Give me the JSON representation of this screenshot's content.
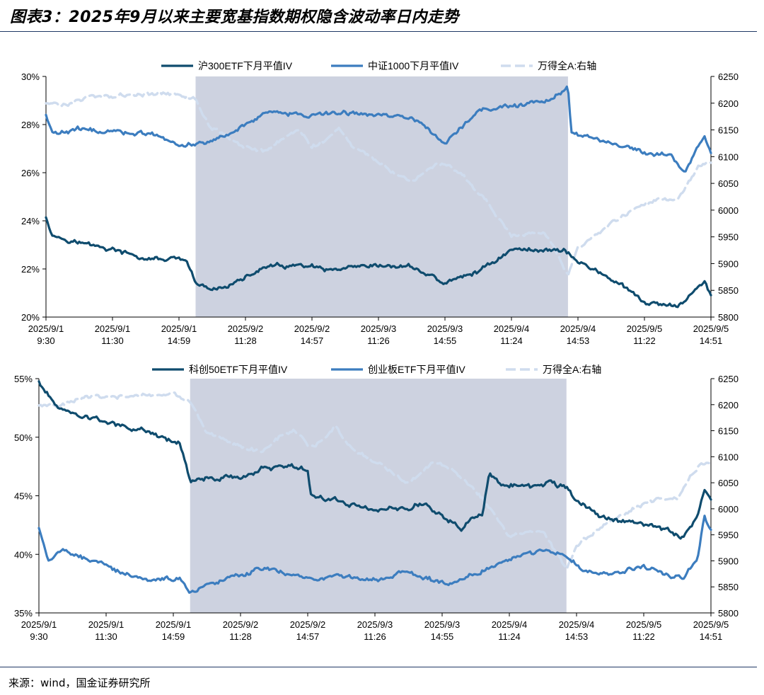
{
  "figure": {
    "title": "图表3：2025年9月以来主要宽基指数期权隐含波动率日内走势",
    "source": "来源：wind，国金证券研究所"
  },
  "colors": {
    "dark_series": "#0f4c6e",
    "mid_series": "#3c7dbf",
    "light_series": "#cfdcee",
    "shade": "#cdd2e0",
    "axis": "#000000"
  },
  "chart_data": [
    {
      "type": "line",
      "x_tick_labels": [
        [
          "2025/9/1",
          "9:30"
        ],
        [
          "2025/9/1",
          "11:30"
        ],
        [
          "2025/9/1",
          "14:59"
        ],
        [
          "2025/9/2",
          "11:28"
        ],
        [
          "2025/9/2",
          "14:57"
        ],
        [
          "2025/9/3",
          "11:26"
        ],
        [
          "2025/9/3",
          "14:55"
        ],
        [
          "2025/9/4",
          "11:24"
        ],
        [
          "2025/9/4",
          "14:53"
        ],
        [
          "2025/9/5",
          "11:22"
        ],
        [
          "2025/9/5",
          "14:51"
        ]
      ],
      "x_range": [
        0,
        10
      ],
      "y_left": {
        "min": 20,
        "max": 30,
        "ticks": [
          20,
          22,
          24,
          26,
          28,
          30
        ],
        "format": "percent"
      },
      "y_right": {
        "min": 5800,
        "max": 6250,
        "ticks": [
          5800,
          5850,
          5900,
          5950,
          6000,
          6050,
          6100,
          6150,
          6200,
          6250
        ]
      },
      "shaded_range": [
        2.25,
        7.85
      ],
      "legend": [
        "沪300ETF下月平值IV",
        "中证1000下月平值IV",
        "万得全A:右轴"
      ],
      "series": [
        {
          "name": "沪300ETF下月平值IV",
          "axis": "left",
          "style": "solid-dark",
          "noise": 0.12,
          "points": [
            [
              0,
              24.2
            ],
            [
              0.1,
              23.4
            ],
            [
              0.5,
              23.1
            ],
            [
              1.0,
              22.8
            ],
            [
              1.5,
              22.4
            ],
            [
              2.0,
              22.4
            ],
            [
              2.1,
              22.3
            ],
            [
              2.25,
              21.4
            ],
            [
              2.5,
              21.1
            ],
            [
              3.0,
              21.6
            ],
            [
              3.3,
              22.1
            ],
            [
              4.0,
              22.1
            ],
            [
              4.2,
              21.9
            ],
            [
              5.0,
              22.1
            ],
            [
              5.5,
              22.1
            ],
            [
              6.0,
              21.4
            ],
            [
              6.5,
              21.9
            ],
            [
              7.0,
              22.8
            ],
            [
              7.5,
              22.8
            ],
            [
              7.8,
              22.8
            ],
            [
              8.0,
              22.3
            ],
            [
              8.5,
              21.6
            ],
            [
              9.0,
              20.6
            ],
            [
              9.5,
              20.4
            ],
            [
              9.7,
              21.0
            ],
            [
              9.9,
              21.5
            ],
            [
              10,
              20.9
            ]
          ]
        },
        {
          "name": "中证1000下月平值IV",
          "axis": "left",
          "style": "solid-mid",
          "noise": 0.12,
          "points": [
            [
              0,
              28.4
            ],
            [
              0.1,
              27.6
            ],
            [
              0.5,
              27.8
            ],
            [
              1.0,
              27.7
            ],
            [
              1.6,
              27.6
            ],
            [
              2.0,
              27.1
            ],
            [
              2.5,
              27.3
            ],
            [
              3.0,
              28.0
            ],
            [
              3.3,
              28.5
            ],
            [
              4.0,
              28.4
            ],
            [
              4.5,
              28.5
            ],
            [
              5.0,
              28.4
            ],
            [
              5.5,
              28.3
            ],
            [
              6.0,
              27.2
            ],
            [
              6.5,
              28.6
            ],
            [
              7.0,
              28.8
            ],
            [
              7.5,
              28.9
            ],
            [
              7.85,
              29.5
            ],
            [
              7.9,
              27.7
            ],
            [
              8.5,
              27.2
            ],
            [
              9.0,
              26.8
            ],
            [
              9.4,
              26.7
            ],
            [
              9.6,
              26.0
            ],
            [
              9.9,
              27.5
            ],
            [
              10,
              26.9
            ]
          ]
        },
        {
          "name": "万得全A:右轴",
          "axis": "right",
          "style": "dashed-light",
          "noise": 5,
          "points": [
            [
              0,
              6200
            ],
            [
              0.3,
              6195
            ],
            [
              0.7,
              6215
            ],
            [
              1.0,
              6215
            ],
            [
              1.4,
              6215
            ],
            [
              2.0,
              6220
            ],
            [
              2.25,
              6205
            ],
            [
              2.5,
              6150
            ],
            [
              3.0,
              6120
            ],
            [
              3.3,
              6110
            ],
            [
              3.6,
              6140
            ],
            [
              3.8,
              6150
            ],
            [
              4.0,
              6120
            ],
            [
              4.2,
              6130
            ],
            [
              4.4,
              6160
            ],
            [
              4.6,
              6120
            ],
            [
              5.0,
              6090
            ],
            [
              5.5,
              6050
            ],
            [
              5.9,
              6090
            ],
            [
              6.2,
              6070
            ],
            [
              6.6,
              6020
            ],
            [
              7.0,
              5950
            ],
            [
              7.5,
              5960
            ],
            [
              7.85,
              5880
            ],
            [
              8.0,
              5930
            ],
            [
              8.3,
              5960
            ],
            [
              8.8,
              6000
            ],
            [
              9.2,
              6020
            ],
            [
              9.5,
              6020
            ],
            [
              9.8,
              6080
            ],
            [
              10,
              6090
            ]
          ]
        }
      ]
    },
    {
      "type": "line",
      "x_tick_labels": [
        [
          "2025/9/1",
          "9:30"
        ],
        [
          "2025/9/1",
          "11:30"
        ],
        [
          "2025/9/1",
          "14:59"
        ],
        [
          "2025/9/2",
          "11:28"
        ],
        [
          "2025/9/2",
          "14:57"
        ],
        [
          "2025/9/3",
          "11:26"
        ],
        [
          "2025/9/3",
          "14:55"
        ],
        [
          "2025/9/4",
          "11:24"
        ],
        [
          "2025/9/4",
          "14:53"
        ],
        [
          "2025/9/5",
          "11:22"
        ],
        [
          "2025/9/5",
          "14:51"
        ]
      ],
      "x_range": [
        0,
        10
      ],
      "y_left": {
        "min": 35,
        "max": 55,
        "ticks": [
          35,
          40,
          45,
          50,
          55
        ],
        "format": "percent"
      },
      "y_right": {
        "min": 5800,
        "max": 6250,
        "ticks": [
          5800,
          5850,
          5900,
          5950,
          6000,
          6050,
          6100,
          6150,
          6200,
          6250
        ]
      },
      "shaded_range": [
        2.25,
        7.85
      ],
      "legend": [
        "科创50ETF下月平值IV",
        "创业板ETF下月平值IV",
        "万得全A:右轴"
      ],
      "series": [
        {
          "name": "科创50ETF下月平值IV",
          "axis": "left",
          "style": "solid-dark",
          "noise": 0.3,
          "points": [
            [
              0,
              54.8
            ],
            [
              0.2,
              53.0
            ],
            [
              0.5,
              52.0
            ],
            [
              1.0,
              51.3
            ],
            [
              1.5,
              50.6
            ],
            [
              2.0,
              49.7
            ],
            [
              2.1,
              49.5
            ],
            [
              2.25,
              46.3
            ],
            [
              2.5,
              46.6
            ],
            [
              3.0,
              46.5
            ],
            [
              3.3,
              47.3
            ],
            [
              3.6,
              47.6
            ],
            [
              4.0,
              47.3
            ],
            [
              4.05,
              45.0
            ],
            [
              4.5,
              44.5
            ],
            [
              5.0,
              43.8
            ],
            [
              5.5,
              44.0
            ],
            [
              5.8,
              44.3
            ],
            [
              6.0,
              43.2
            ],
            [
              6.3,
              42.3
            ],
            [
              6.6,
              43.5
            ],
            [
              6.7,
              46.8
            ],
            [
              6.9,
              46.0
            ],
            [
              7.3,
              45.6
            ],
            [
              7.6,
              46.3
            ],
            [
              7.85,
              45.6
            ],
            [
              8.0,
              44.4
            ],
            [
              8.5,
              43.0
            ],
            [
              9.0,
              42.6
            ],
            [
              9.3,
              42.2
            ],
            [
              9.6,
              41.5
            ],
            [
              9.8,
              43.5
            ],
            [
              9.9,
              45.3
            ],
            [
              10,
              44.6
            ]
          ]
        },
        {
          "name": "创业板ETF下月平值IV",
          "axis": "left",
          "style": "solid-mid",
          "noise": 0.25,
          "points": [
            [
              0,
              42.3
            ],
            [
              0.15,
              39.5
            ],
            [
              0.4,
              40.3
            ],
            [
              0.8,
              39.5
            ],
            [
              1.2,
              38.5
            ],
            [
              1.7,
              37.8
            ],
            [
              2.1,
              38.0
            ],
            [
              2.25,
              36.7
            ],
            [
              2.6,
              37.5
            ],
            [
              3.0,
              38.2
            ],
            [
              3.3,
              38.9
            ],
            [
              3.6,
              38.5
            ],
            [
              4.0,
              38.0
            ],
            [
              4.5,
              38.0
            ],
            [
              5.0,
              37.9
            ],
            [
              5.4,
              38.5
            ],
            [
              5.7,
              38.1
            ],
            [
              6.1,
              37.4
            ],
            [
              6.5,
              38.3
            ],
            [
              6.9,
              39.3
            ],
            [
              7.2,
              40.0
            ],
            [
              7.5,
              40.3
            ],
            [
              7.85,
              39.8
            ],
            [
              8.1,
              38.6
            ],
            [
              8.5,
              38.3
            ],
            [
              9.0,
              39.0
            ],
            [
              9.3,
              38.3
            ],
            [
              9.6,
              38.0
            ],
            [
              9.8,
              39.6
            ],
            [
              9.9,
              43.2
            ],
            [
              10,
              42.0
            ]
          ]
        },
        {
          "name": "万得全A:右轴",
          "axis": "right",
          "style": "dashed-light",
          "noise": 5,
          "points": [
            [
              0,
              6200
            ],
            [
              0.3,
              6195
            ],
            [
              0.7,
              6215
            ],
            [
              1.0,
              6215
            ],
            [
              1.4,
              6215
            ],
            [
              2.0,
              6220
            ],
            [
              2.25,
              6205
            ],
            [
              2.5,
              6150
            ],
            [
              3.0,
              6120
            ],
            [
              3.3,
              6110
            ],
            [
              3.6,
              6140
            ],
            [
              3.8,
              6150
            ],
            [
              4.0,
              6120
            ],
            [
              4.2,
              6130
            ],
            [
              4.4,
              6160
            ],
            [
              4.6,
              6120
            ],
            [
              5.0,
              6090
            ],
            [
              5.5,
              6050
            ],
            [
              5.9,
              6090
            ],
            [
              6.2,
              6070
            ],
            [
              6.6,
              6020
            ],
            [
              7.0,
              5950
            ],
            [
              7.5,
              5960
            ],
            [
              7.85,
              5880
            ],
            [
              8.0,
              5930
            ],
            [
              8.3,
              5960
            ],
            [
              8.8,
              6000
            ],
            [
              9.2,
              6020
            ],
            [
              9.5,
              6020
            ],
            [
              9.8,
              6080
            ],
            [
              10,
              6090
            ]
          ]
        }
      ]
    }
  ]
}
